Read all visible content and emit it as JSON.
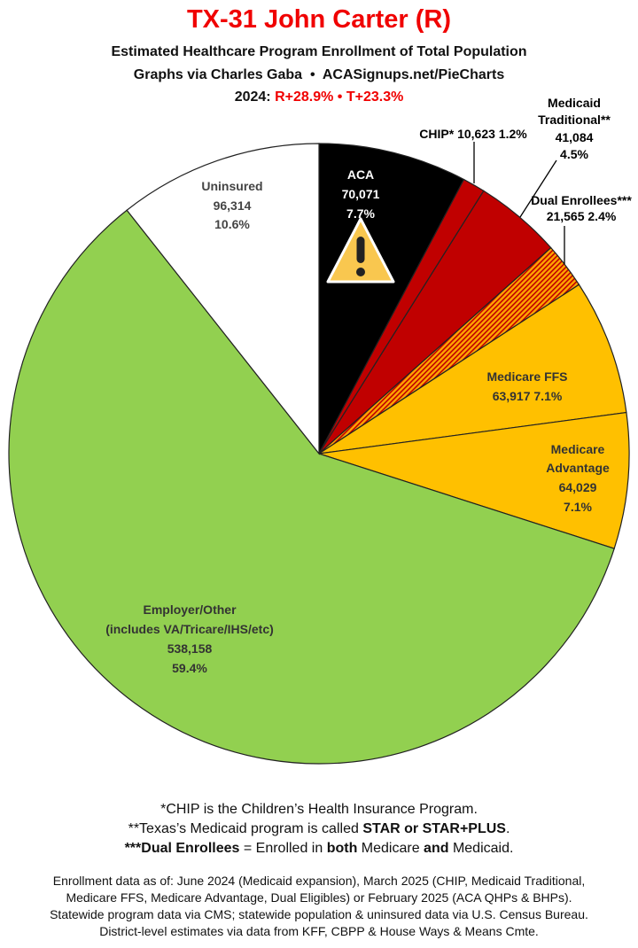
{
  "title": "TX-31 John Carter (R)",
  "subtitle": "Estimated Healthcare Program Enrollment of Total Population",
  "credit": "Graphs via Charles Gaba  •  ACASignups.net/PieCharts",
  "results": {
    "prefix": "2024: ",
    "r": "R+28.9%",
    "sep": " • ",
    "t": "T+23.3%"
  },
  "chart_data": {
    "type": "pie",
    "start": "12 o'clock, clockwise",
    "slices": [
      {
        "name": "ACA",
        "value": 70071,
        "value_label": "70,071",
        "percent": 7.7,
        "percent_label": "7.7%",
        "color": "#000000",
        "icon": "warning-icon"
      },
      {
        "name": "CHIP*",
        "value": 10623,
        "value_label": "10,623",
        "percent": 1.2,
        "percent_label": "1.2%",
        "color": "#c00000"
      },
      {
        "name": "Medicaid Traditional**",
        "value": 41084,
        "value_label": "41,084",
        "percent": 4.5,
        "percent_label": "4.5%",
        "color": "#c00000"
      },
      {
        "name": "Dual Enrollees***",
        "value": 21565,
        "value_label": "21,565",
        "percent": 2.4,
        "percent_label": "2.4%",
        "color": "#ffa500",
        "pattern": "red/orange hatched"
      },
      {
        "name": "Medicare FFS",
        "value": 63917,
        "value_label": "63,917",
        "percent": 7.1,
        "percent_label": "7.1%",
        "color": "#ffc000"
      },
      {
        "name": "Medicare Advantage",
        "value": 64029,
        "value_label": "64,029",
        "percent": 7.1,
        "percent_label": "7.1%",
        "color": "#ffc000"
      },
      {
        "name": "Employer/Other",
        "name2": "(includes VA/Tricare/IHS/etc)",
        "value": 538158,
        "value_label": "538,158",
        "percent": 59.4,
        "percent_label": "59.4%",
        "color": "#92d050"
      },
      {
        "name": "Uninsured",
        "value": 96314,
        "value_label": "96,314",
        "percent": 10.6,
        "percent_label": "10.6%",
        "color": "#ffffff"
      }
    ]
  },
  "notes": {
    "n1": "*CHIP is the Children’s Health Insurance Program.",
    "n2_pre": "**Texas’s Medicaid program is called ",
    "n2_bold": "STAR or STAR+PLUS",
    "n2_post": ".",
    "n3_b1": "***Dual Enrollees",
    "n3_t1": " = Enrolled in ",
    "n3_b2": "both",
    "n3_t2": " Medicare ",
    "n3_b3": "and",
    "n3_t3": " Medicaid."
  },
  "sources": [
    "Enrollment data as of: June 2024 (Medicaid expansion), March 2025 (CHIP, Medicaid Traditional,",
    "Medicare FFS, Medicare Advantage, Dual Eligibles) or February 2025 (ACA QHPs & BHPs).",
    "Statewide program data via CMS; statewide population & uninsured data via U.S. Census Bureau.",
    "District-level estimates via data from KFF, CBPP & House Ways & Means Cmte."
  ]
}
